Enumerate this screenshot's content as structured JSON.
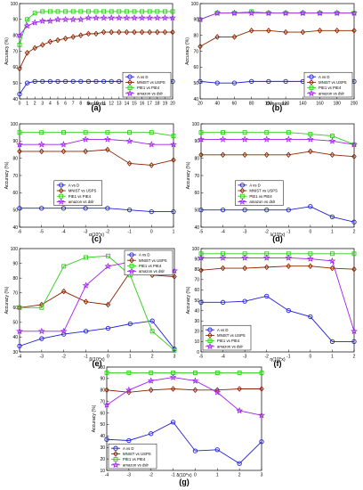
{
  "figure": {
    "series_styles": [
      {
        "name": "A vs D",
        "color": "#1f1fd6",
        "marker": "circle"
      },
      {
        "name": "MNIST vs USPS",
        "color": "#8b2500",
        "marker": "diamond"
      },
      {
        "name": "PIE1 vs PIE4",
        "color": "#2ecc1a",
        "marker": "square"
      },
      {
        "name": "amazon vs dslr",
        "color": "#a020f0",
        "marker": "star"
      }
    ]
  },
  "chart_data": [
    {
      "panel": "(a)",
      "type": "line",
      "xlabel": "Iterations",
      "ylabel": "Accuracy (%)",
      "xlim": [
        0,
        20
      ],
      "ylim": [
        40,
        100
      ],
      "xticks": [
        0,
        1,
        2,
        3,
        4,
        5,
        6,
        7,
        8,
        9,
        10,
        11,
        12,
        13,
        14,
        15,
        16,
        17,
        18,
        19,
        20
      ],
      "yticks": [
        40,
        50,
        60,
        70,
        80,
        90,
        100
      ],
      "legend_position": "bottom-right",
      "grid": false,
      "x": [
        0,
        1,
        2,
        3,
        4,
        5,
        6,
        7,
        8,
        9,
        10,
        11,
        12,
        13,
        14,
        15,
        16,
        17,
        18,
        19,
        20
      ],
      "series": [
        {
          "name": "A vs D",
          "values": [
            43,
            50,
            51,
            51,
            51,
            51,
            51,
            51,
            51,
            51,
            51,
            51,
            51,
            51,
            51,
            51,
            51,
            51,
            51,
            51,
            51
          ]
        },
        {
          "name": "MNIST vs USPS",
          "values": [
            59,
            69,
            72,
            74,
            76,
            77,
            78,
            79,
            80,
            81,
            81,
            82,
            82,
            82,
            82,
            82,
            82,
            82,
            82,
            82,
            82
          ]
        },
        {
          "name": "PIE1 vs PIE4",
          "values": [
            74,
            90,
            94,
            95,
            95,
            95,
            95,
            95,
            95,
            95,
            95,
            95,
            95,
            95,
            95,
            95,
            95,
            95,
            95,
            95,
            95
          ]
        },
        {
          "name": "amazon vs dslr",
          "values": [
            80,
            86,
            88,
            89,
            89,
            90,
            90,
            90,
            90,
            91,
            91,
            91,
            91,
            91,
            91,
            91,
            91,
            91,
            91,
            91,
            91
          ]
        }
      ]
    },
    {
      "panel": "(b)",
      "type": "line",
      "xlabel": "Dimension",
      "ylabel": "Accuracy (%)",
      "xlim": [
        20,
        200
      ],
      "ylim": [
        40,
        100
      ],
      "xticks": [
        20,
        40,
        60,
        80,
        100,
        120,
        140,
        160,
        180,
        200
      ],
      "yticks": [
        40,
        50,
        60,
        70,
        80,
        90,
        100
      ],
      "legend_position": "bottom-right",
      "grid": false,
      "x": [
        20,
        40,
        60,
        80,
        100,
        120,
        140,
        160,
        180,
        200
      ],
      "series": [
        {
          "name": "A vs D",
          "values": [
            51,
            50,
            50,
            51,
            51,
            51,
            51,
            52,
            52,
            51
          ]
        },
        {
          "name": "MNIST vs USPS",
          "values": [
            73,
            79,
            79,
            83,
            83,
            82,
            82,
            83,
            83,
            83
          ]
        },
        {
          "name": "PIE1 vs PIE4",
          "values": [
            90,
            94,
            94,
            95,
            94,
            94,
            94,
            94,
            94,
            94
          ]
        },
        {
          "name": "amazon vs dslr",
          "values": [
            90,
            94,
            94,
            94,
            94,
            94,
            94,
            94,
            94,
            94
          ]
        }
      ]
    },
    {
      "panel": "(c)",
      "type": "line",
      "xlabel": "α(10^x)",
      "ylabel": "Accuracy (%)",
      "xlim": [
        -6,
        1
      ],
      "ylim": [
        40,
        100
      ],
      "xticks": [
        -6,
        -5,
        -4,
        -3,
        -2,
        -1,
        0,
        1
      ],
      "yticks": [
        40,
        50,
        60,
        70,
        80,
        90,
        100
      ],
      "legend_position": "center-left",
      "grid": false,
      "x": [
        -6,
        -5,
        -4,
        -3,
        -2,
        -1,
        0,
        1
      ],
      "series": [
        {
          "name": "A vs D",
          "values": [
            51,
            51,
            51,
            51,
            51,
            50,
            49,
            49
          ]
        },
        {
          "name": "MNIST vs USPS",
          "values": [
            84,
            84,
            84,
            84,
            85,
            77,
            76,
            79
          ]
        },
        {
          "name": "PIE1 vs PIE4",
          "values": [
            95,
            95,
            95,
            95,
            95,
            95,
            95,
            93
          ]
        },
        {
          "name": "amazon vs dslr",
          "values": [
            88,
            88,
            88,
            91,
            91,
            90,
            88,
            88
          ]
        }
      ]
    },
    {
      "panel": "(d)",
      "type": "line",
      "xlabel": "λ(10^x)",
      "ylabel": "Accuracy (%)",
      "xlim": [
        -5,
        2
      ],
      "ylim": [
        40,
        100
      ],
      "xticks": [
        -5,
        -4,
        -3,
        -2,
        -1,
        0,
        1,
        2
      ],
      "yticks": [
        40,
        50,
        60,
        70,
        80,
        90,
        100
      ],
      "legend_position": "center-left",
      "grid": false,
      "x": [
        -5,
        -4,
        -3,
        -2,
        -1,
        0,
        1,
        2
      ],
      "series": [
        {
          "name": "A vs D",
          "values": [
            50,
            50,
            50,
            50,
            50,
            52,
            46,
            43
          ]
        },
        {
          "name": "MNIST vs USPS",
          "values": [
            82,
            82,
            82,
            82,
            82,
            84,
            82,
            81
          ]
        },
        {
          "name": "PIE1 vs PIE4",
          "values": [
            95,
            95,
            95,
            95,
            95,
            94,
            93,
            88
          ]
        },
        {
          "name": "amazon vs dslr",
          "values": [
            91,
            91,
            91,
            91,
            91,
            91,
            90,
            88
          ]
        }
      ]
    },
    {
      "panel": "(e)",
      "type": "line",
      "xlabel": "β(10^x)",
      "ylabel": "Accuracy (%)",
      "xlim": [
        -4,
        3
      ],
      "ylim": [
        30,
        100
      ],
      "xticks": [
        -4,
        -3,
        -2,
        -1,
        0,
        1,
        2,
        3
      ],
      "yticks": [
        30,
        40,
        50,
        60,
        70,
        80,
        90,
        100
      ],
      "legend_position": "top-right",
      "grid": false,
      "x": [
        -4,
        -3,
        -2,
        -1,
        0,
        1,
        2,
        3
      ],
      "series": [
        {
          "name": "A vs D",
          "values": [
            34,
            39,
            42,
            44,
            46,
            49,
            51,
            32
          ]
        },
        {
          "name": "MNIST vs USPS",
          "values": [
            60,
            62,
            71,
            64,
            62,
            84,
            82,
            81
          ]
        },
        {
          "name": "PIE1 vs PIE4",
          "values": [
            60,
            60,
            88,
            94,
            95,
            82,
            44,
            31
          ]
        },
        {
          "name": "amazon vs dslr",
          "values": [
            44,
            44,
            44,
            75,
            88,
            91,
            88,
            85
          ]
        }
      ]
    },
    {
      "panel": "(f)",
      "type": "line",
      "xlabel": "η(10^x)",
      "ylabel": "Accuracy (%)",
      "xlim": [
        -5,
        2
      ],
      "ylim": [
        0,
        100
      ],
      "xticks": [
        -5,
        -4,
        -3,
        -2,
        -1,
        0,
        1,
        2
      ],
      "yticks": [
        0,
        10,
        20,
        30,
        40,
        50,
        60,
        70,
        80,
        90,
        100
      ],
      "legend_position": "bottom-left",
      "grid": false,
      "x": [
        -5,
        -4,
        -3,
        -2,
        -1,
        0,
        1,
        2
      ],
      "series": [
        {
          "name": "A vs D",
          "values": [
            48,
            48,
            49,
            54,
            40,
            34,
            10,
            10
          ]
        },
        {
          "name": "MNIST vs USPS",
          "values": [
            79,
            81,
            81,
            82,
            83,
            83,
            81,
            80
          ]
        },
        {
          "name": "PIE1 vs PIE4",
          "values": [
            95,
            95,
            95,
            95,
            95,
            95,
            95,
            95
          ]
        },
        {
          "name": "amazon vs dslr",
          "values": [
            91,
            91,
            91,
            91,
            91,
            90,
            88,
            20
          ]
        }
      ]
    },
    {
      "panel": "(g)",
      "type": "line",
      "xlabel": "δ(10^x)",
      "ylabel": "Accuracy (%)",
      "xlim": [
        -4,
        3
      ],
      "ylim": [
        10,
        100
      ],
      "xticks": [
        -4,
        -3,
        -2,
        -1,
        0,
        1,
        2,
        3
      ],
      "yticks": [
        10,
        20,
        30,
        40,
        50,
        60,
        70,
        80,
        90,
        100
      ],
      "legend_position": "bottom-left",
      "grid": false,
      "x": [
        -4,
        -3,
        -2,
        -1,
        0,
        1,
        2,
        3
      ],
      "series": [
        {
          "name": "A vs D",
          "values": [
            37,
            36,
            42,
            52,
            27,
            28,
            16,
            35
          ]
        },
        {
          "name": "MNIST vs USPS",
          "values": [
            80,
            78,
            80,
            81,
            80,
            80,
            81,
            81
          ]
        },
        {
          "name": "PIE1 vs PIE4",
          "values": [
            95,
            95,
            95,
            95,
            95,
            95,
            95,
            95
          ]
        },
        {
          "name": "amazon vs dslr",
          "values": [
            67,
            80,
            88,
            91,
            88,
            78,
            62,
            58
          ]
        }
      ]
    }
  ]
}
